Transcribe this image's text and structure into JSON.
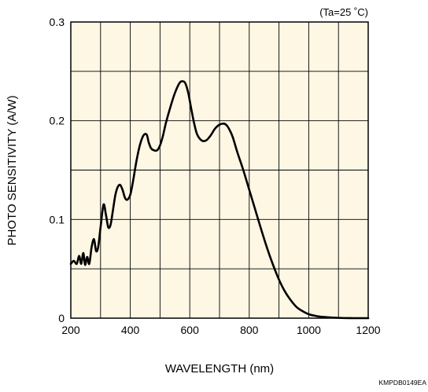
{
  "condition_note": "(Ta=25 ˚C)",
  "figure_code": "KMPDB0149EA",
  "colors": {
    "plot_background": "#fdf7e4",
    "grid": "#000000",
    "curve": "#000000"
  },
  "chart_data": {
    "type": "line",
    "title": "",
    "xlabel": "WAVELENGTH (nm)",
    "ylabel": "PHOTO SENSITIVITY (A/W)",
    "xlim": [
      200,
      1200
    ],
    "ylim": [
      0,
      0.3
    ],
    "x_ticks": [
      200,
      400,
      600,
      800,
      1000,
      1200
    ],
    "x_tick_labels": [
      "200",
      "400",
      "600",
      "800",
      "1000",
      "1200"
    ],
    "y_ticks": [
      0,
      0.1,
      0.2,
      0.3
    ],
    "y_tick_labels": [
      "0",
      "0.1",
      "0.2",
      "0.3"
    ],
    "x_grid_step": 100,
    "y_grid_step": 0.05,
    "grid": true,
    "legend": "none",
    "series": [
      {
        "x": [
          200,
          210,
          220,
          228,
          235,
          242,
          248,
          255,
          262,
          270,
          278,
          285,
          292,
          300,
          310,
          318,
          326,
          334,
          342,
          350,
          358,
          366,
          374,
          382,
          390,
          400,
          410,
          420,
          432,
          444,
          455,
          462,
          470,
          480,
          490,
          500,
          510,
          520,
          535,
          550,
          565,
          575,
          585,
          595,
          605,
          615,
          625,
          640,
          655,
          670,
          685,
          700,
          715,
          725,
          735,
          745,
          760,
          780,
          800,
          820,
          840,
          860,
          880,
          900,
          920,
          940,
          960,
          980,
          1000,
          1020,
          1040,
          1060,
          1080,
          1100,
          1120,
          1150,
          1180,
          1200
        ],
        "y": [
          0.055,
          0.058,
          0.055,
          0.063,
          0.055,
          0.066,
          0.054,
          0.062,
          0.055,
          0.072,
          0.08,
          0.068,
          0.072,
          0.092,
          0.115,
          0.105,
          0.092,
          0.095,
          0.11,
          0.125,
          0.133,
          0.135,
          0.13,
          0.122,
          0.12,
          0.125,
          0.14,
          0.158,
          0.175,
          0.185,
          0.186,
          0.178,
          0.172,
          0.17,
          0.17,
          0.175,
          0.185,
          0.198,
          0.214,
          0.228,
          0.238,
          0.24,
          0.238,
          0.228,
          0.212,
          0.197,
          0.186,
          0.18,
          0.18,
          0.185,
          0.192,
          0.196,
          0.197,
          0.195,
          0.19,
          0.183,
          0.168,
          0.15,
          0.13,
          0.11,
          0.09,
          0.071,
          0.054,
          0.039,
          0.027,
          0.018,
          0.011,
          0.007,
          0.004,
          0.0025,
          0.0015,
          0.001,
          0.0006,
          0.0003,
          0.0001,
          0,
          0,
          0
        ]
      }
    ]
  }
}
